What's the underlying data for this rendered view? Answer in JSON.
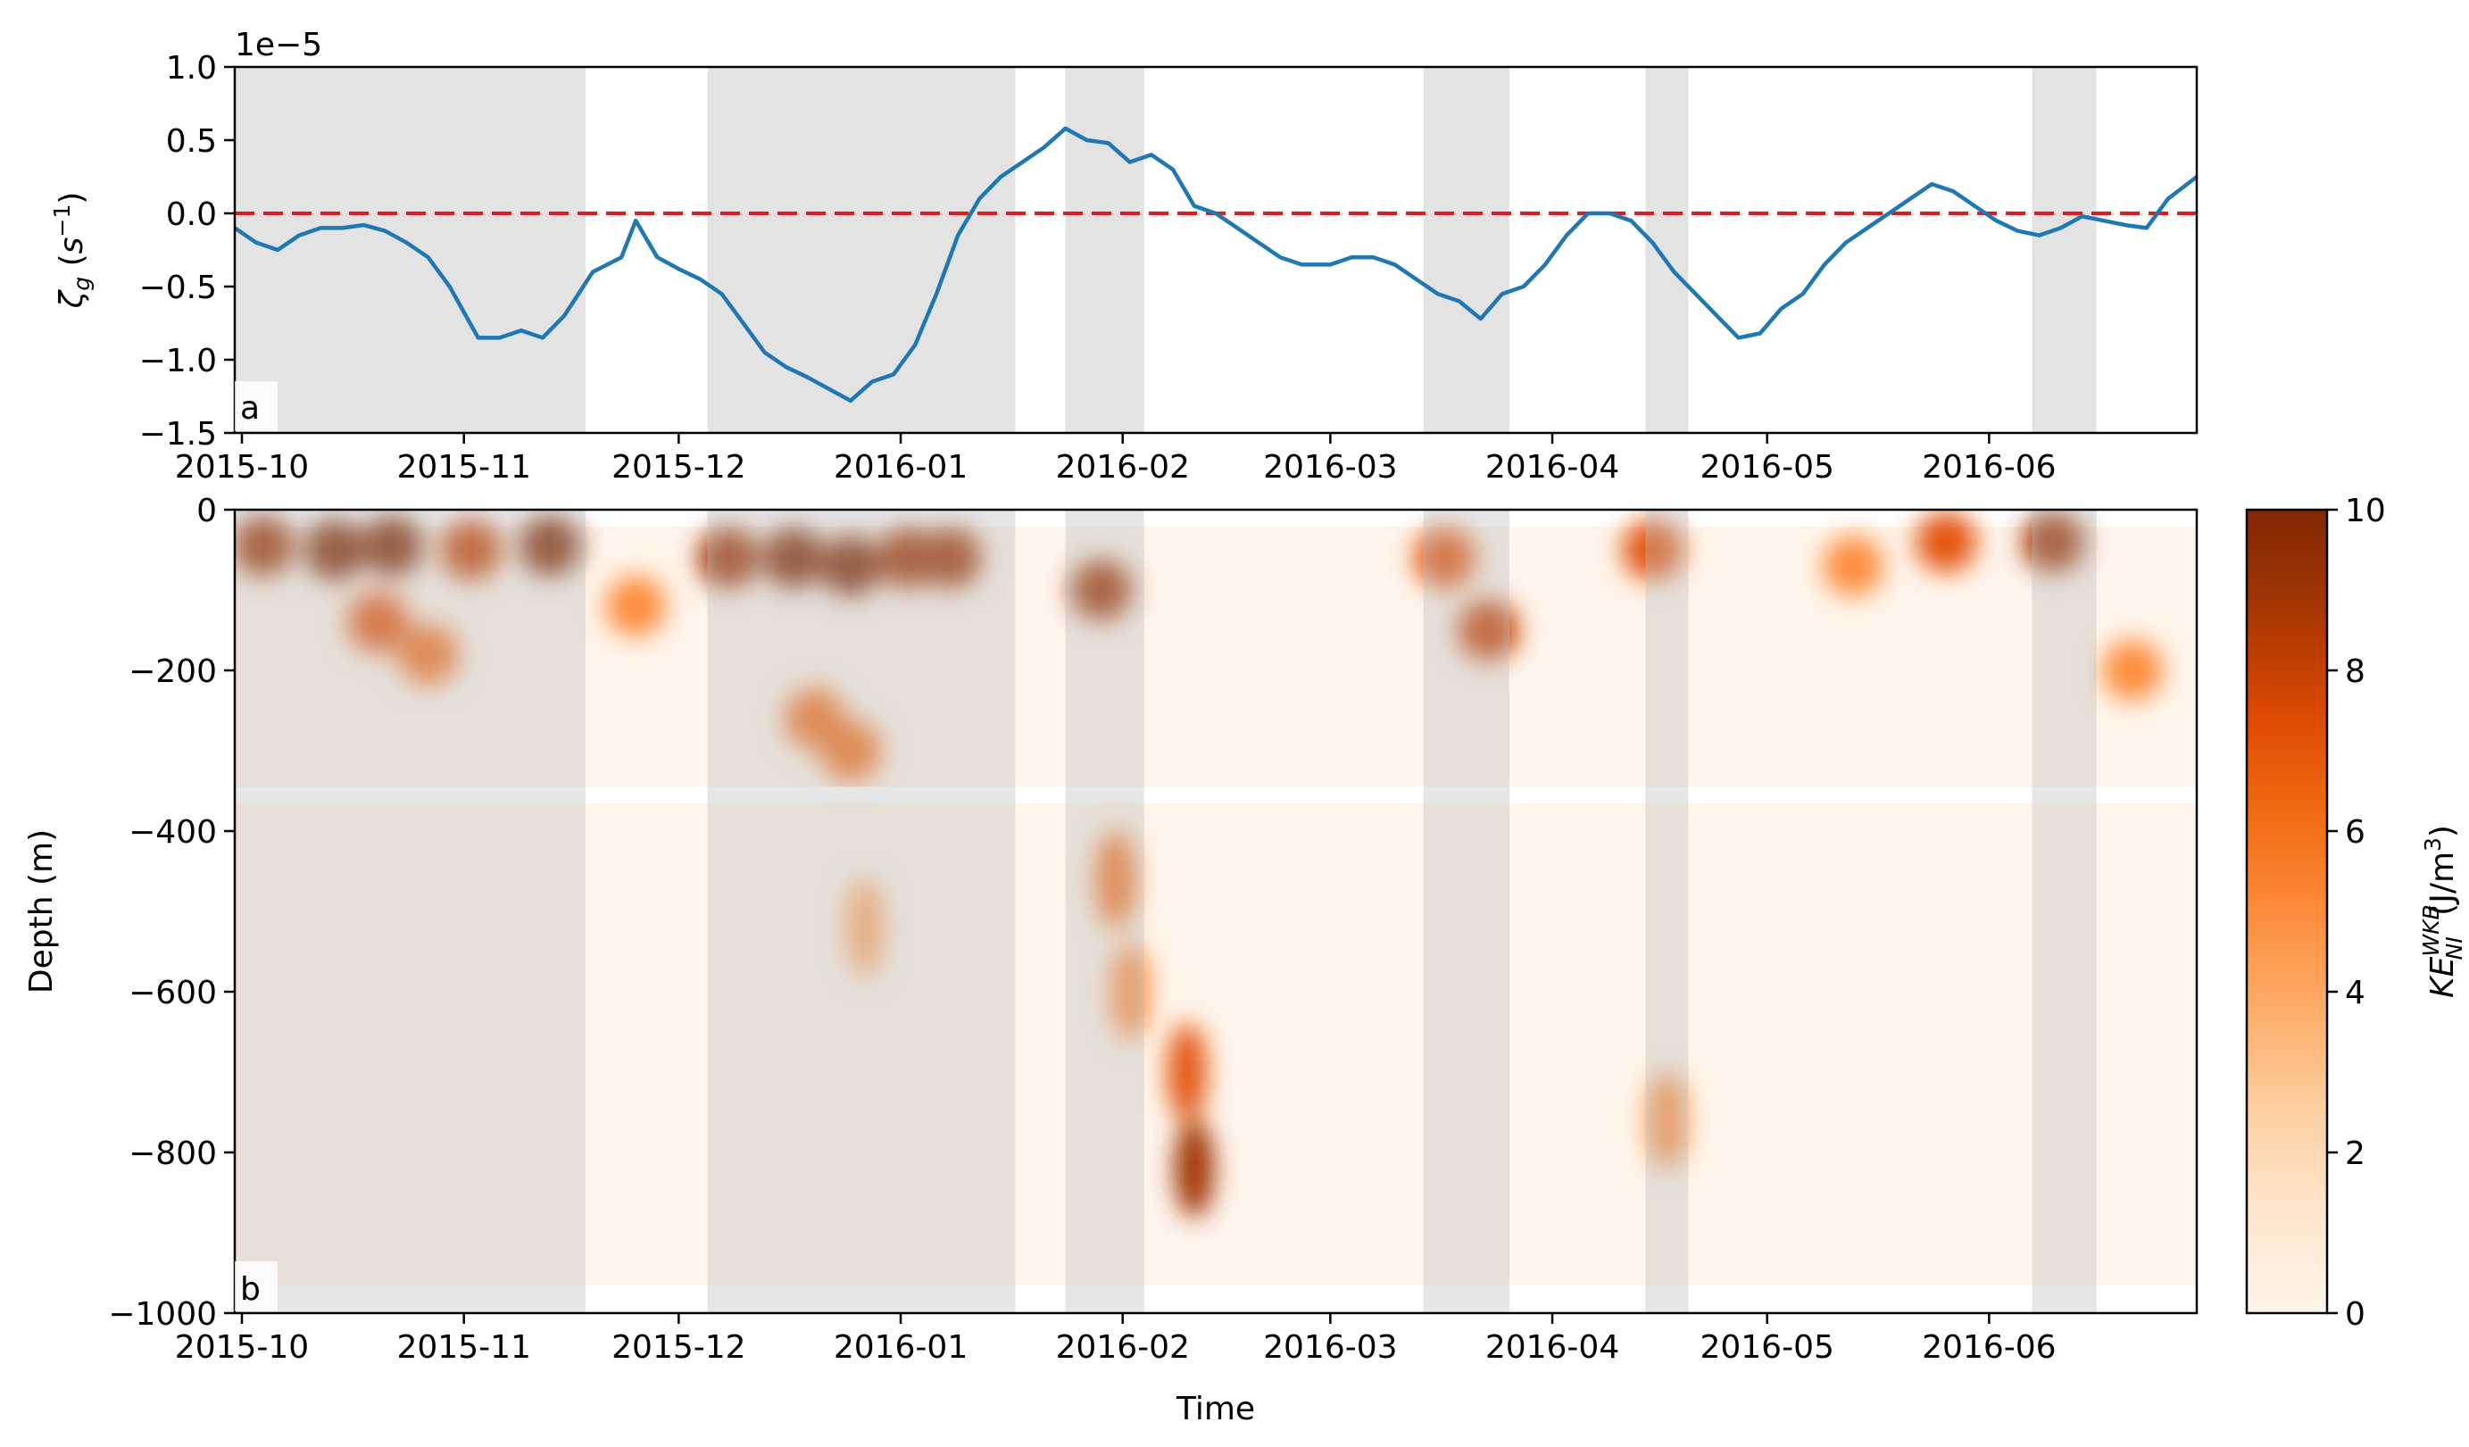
{
  "chart_data": [
    {
      "panel": "a",
      "type": "line",
      "ylabel_symbol": "ζ",
      "ylabel_sub": "g",
      "ylabel_unit_open": " (",
      "ylabel_unit_base": "s",
      "ylabel_unit_exp": "−1",
      "ylabel_unit_close": ")",
      "offset_text": "1e−5",
      "xlabel": "",
      "ylim": [
        -1.5,
        1.0
      ],
      "yticks": [
        1.0,
        0.5,
        0.0,
        -0.5,
        -1.0,
        -1.5
      ],
      "ytick_labels": [
        "1.0",
        "0.5",
        "0.0",
        "−0.5",
        "−1.0",
        "−1.5"
      ],
      "xticks": [
        "2015-10",
        "2015-11",
        "2015-12",
        "2016-01",
        "2016-02",
        "2016-03",
        "2016-04",
        "2016-05",
        "2016-06"
      ],
      "xlim_days": [
        0,
        274
      ],
      "tick_days": [
        0,
        31,
        61,
        92,
        123,
        152,
        183,
        213,
        244
      ],
      "xlim": [
        "2015-09-30",
        "2016-06-30"
      ],
      "reference_line": {
        "y": 0.0,
        "style": "dashed",
        "color": "#e31a1c"
      },
      "line_color": "#1f77b4",
      "shaded_color": "#bdbdbd",
      "shaded_periods": [
        [
          "2015-09-30",
          "2015-11-18"
        ],
        [
          "2015-12-05",
          "2016-01-17"
        ],
        [
          "2016-01-24",
          "2016-02-04"
        ],
        [
          "2016-03-14",
          "2016-03-26"
        ],
        [
          "2016-04-14",
          "2016-04-20"
        ],
        [
          "2016-06-07",
          "2016-06-16"
        ]
      ],
      "series": [
        {
          "x": [
            "2015-09-30",
            "2015-10-03",
            "2015-10-06",
            "2015-10-09",
            "2015-10-12",
            "2015-10-15",
            "2015-10-18",
            "2015-10-21",
            "2015-10-24",
            "2015-10-27",
            "2015-10-30",
            "2015-11-03",
            "2015-11-06",
            "2015-11-09",
            "2015-11-12",
            "2015-11-15",
            "2015-11-19",
            "2015-11-23",
            "2015-11-25",
            "2015-11-28",
            "2015-12-01",
            "2015-12-04",
            "2015-12-07",
            "2015-12-10",
            "2015-12-13",
            "2015-12-16",
            "2015-12-19",
            "2015-12-22",
            "2015-12-25",
            "2015-12-28",
            "2015-12-31",
            "2016-01-03",
            "2016-01-06",
            "2016-01-09",
            "2016-01-12",
            "2016-01-15",
            "2016-01-18",
            "2016-01-21",
            "2016-01-24",
            "2016-01-27",
            "2016-01-30",
            "2016-02-02",
            "2016-02-05",
            "2016-02-08",
            "2016-02-11",
            "2016-02-14",
            "2016-02-17",
            "2016-02-20",
            "2016-02-23",
            "2016-02-26",
            "2016-03-01",
            "2016-03-04",
            "2016-03-07",
            "2016-03-10",
            "2016-03-13",
            "2016-03-16",
            "2016-03-19",
            "2016-03-22",
            "2016-03-25",
            "2016-03-28",
            "2016-03-31",
            "2016-04-03",
            "2016-04-06",
            "2016-04-09",
            "2016-04-12",
            "2016-04-15",
            "2016-04-18",
            "2016-04-21",
            "2016-04-24",
            "2016-04-27",
            "2016-04-30",
            "2016-05-03",
            "2016-05-06",
            "2016-05-09",
            "2016-05-12",
            "2016-05-15",
            "2016-05-18",
            "2016-05-21",
            "2016-05-24",
            "2016-05-27",
            "2016-05-30",
            "2016-06-02",
            "2016-06-05",
            "2016-06-08",
            "2016-06-11",
            "2016-06-14",
            "2016-06-17",
            "2016-06-20",
            "2016-06-23",
            "2016-06-26",
            "2016-06-30"
          ],
          "values": [
            -0.1,
            -0.2,
            -0.25,
            -0.15,
            -0.1,
            -0.1,
            -0.08,
            -0.12,
            -0.2,
            -0.3,
            -0.5,
            -0.85,
            -0.85,
            -0.8,
            -0.85,
            -0.7,
            -0.4,
            -0.3,
            -0.05,
            -0.3,
            -0.38,
            -0.45,
            -0.55,
            -0.75,
            -0.95,
            -1.05,
            -1.12,
            -1.2,
            -1.28,
            -1.15,
            -1.1,
            -0.9,
            -0.55,
            -0.15,
            0.1,
            0.25,
            0.35,
            0.45,
            0.58,
            0.5,
            0.48,
            0.35,
            0.4,
            0.3,
            0.05,
            0.0,
            -0.1,
            -0.2,
            -0.3,
            -0.35,
            -0.35,
            -0.3,
            -0.3,
            -0.35,
            -0.45,
            -0.55,
            -0.6,
            -0.72,
            -0.55,
            -0.5,
            -0.35,
            -0.15,
            0.0,
            0.0,
            -0.05,
            -0.2,
            -0.4,
            -0.55,
            -0.7,
            -0.85,
            -0.82,
            -0.65,
            -0.55,
            -0.35,
            -0.2,
            -0.1,
            0.0,
            0.1,
            0.2,
            0.15,
            0.05,
            -0.05,
            -0.12,
            -0.15,
            -0.1,
            -0.02,
            -0.05,
            -0.08,
            -0.1,
            0.1,
            0.25
          ]
        }
      ]
    },
    {
      "panel": "b",
      "type": "heatmap",
      "xlabel": "Time",
      "ylabel": "Depth (m)",
      "ylim": [
        -1000,
        0
      ],
      "yticks": [
        0,
        -200,
        -400,
        -600,
        -800,
        -1000
      ],
      "ytick_labels": [
        "0",
        "−200",
        "−400",
        "−600",
        "−800",
        "−1000"
      ],
      "xticks": [
        "2015-10",
        "2015-11",
        "2015-12",
        "2016-01",
        "2016-02",
        "2016-03",
        "2016-04",
        "2016-05",
        "2016-06"
      ],
      "colormap": "Oranges",
      "clim": [
        0,
        10
      ],
      "colorbar_ticks": [
        0,
        2,
        4,
        6,
        8,
        10
      ],
      "colorbar_label_base": "KE",
      "colorbar_label_sup": "WKB",
      "colorbar_label_sub": "NI",
      "colorbar_label_unit": " (J/m",
      "colorbar_label_unit_exp": "3",
      "colorbar_label_close": ")",
      "data_gaps_depth_m": [
        [
          -345,
          -365
        ],
        [
          -965,
          -1000
        ]
      ],
      "hotspots": [
        {
          "date": "2015-10-04",
          "depth": -45,
          "value": 9
        },
        {
          "date": "2015-10-14",
          "depth": -50,
          "value": 10
        },
        {
          "date": "2015-10-22",
          "depth": -45,
          "value": 10
        },
        {
          "date": "2015-11-02",
          "depth": -50,
          "value": 8
        },
        {
          "date": "2015-11-13",
          "depth": -45,
          "value": 10
        },
        {
          "date": "2015-10-20",
          "depth": -140,
          "value": 7
        },
        {
          "date": "2015-10-27",
          "depth": -180,
          "value": 6
        },
        {
          "date": "2015-11-25",
          "depth": -120,
          "value": 5
        },
        {
          "date": "2015-12-08",
          "depth": -60,
          "value": 9
        },
        {
          "date": "2015-12-17",
          "depth": -60,
          "value": 10
        },
        {
          "date": "2015-12-25",
          "depth": -70,
          "value": 10
        },
        {
          "date": "2016-01-02",
          "depth": -60,
          "value": 9
        },
        {
          "date": "2016-01-08",
          "depth": -60,
          "value": 9
        },
        {
          "date": "2015-12-20",
          "depth": -260,
          "value": 6
        },
        {
          "date": "2015-12-25",
          "depth": -300,
          "value": 6
        },
        {
          "date": "2016-01-29",
          "depth": -100,
          "value": 9
        },
        {
          "date": "2016-01-31",
          "depth": -460,
          "value": 6
        },
        {
          "date": "2016-03-17",
          "depth": -60,
          "value": 7
        },
        {
          "date": "2016-03-23",
          "depth": -150,
          "value": 8
        },
        {
          "date": "2016-04-15",
          "depth": -50,
          "value": 7
        },
        {
          "date": "2016-02-10",
          "depth": -700,
          "value": 7
        },
        {
          "date": "2016-02-11",
          "depth": -820,
          "value": 9
        },
        {
          "date": "2016-04-17",
          "depth": -760,
          "value": 5
        },
        {
          "date": "2016-06-10",
          "depth": -40,
          "value": 9
        },
        {
          "date": "2016-06-21",
          "depth": -200,
          "value": 5
        },
        {
          "date": "2016-02-02",
          "depth": -600,
          "value": 5
        },
        {
          "date": "2015-12-27",
          "depth": -520,
          "value": 4
        },
        {
          "date": "2016-05-26",
          "depth": -40,
          "value": 7
        },
        {
          "date": "2016-05-13",
          "depth": -70,
          "value": 5
        }
      ]
    }
  ],
  "panel_labels": [
    "a",
    "b"
  ]
}
